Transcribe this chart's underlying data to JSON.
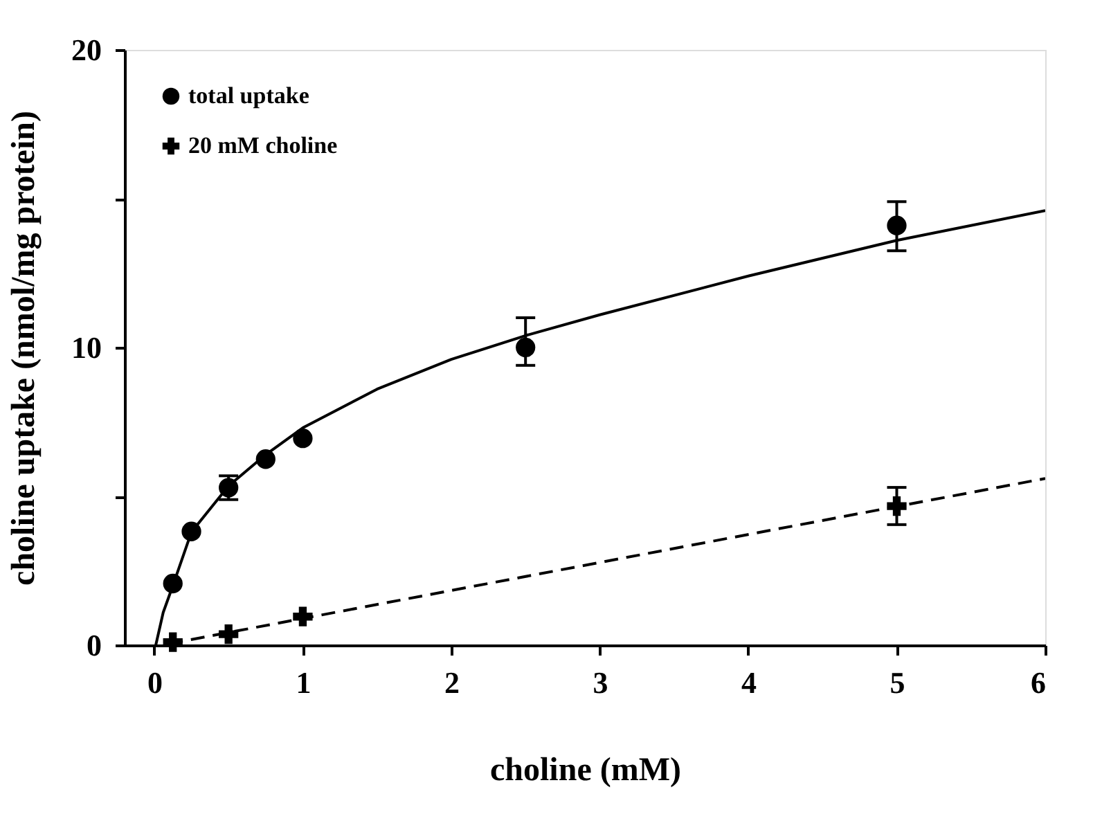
{
  "chart_data": {
    "type": "scatter",
    "xlabel": "choline (mM)",
    "ylabel": "choline uptake (nmol/mg protein)",
    "xlim": [
      -0.2,
      6
    ],
    "ylim": [
      0,
      20
    ],
    "xticks": [
      0,
      1,
      2,
      3,
      4,
      5,
      6
    ],
    "yticks": [
      0,
      {
        "value": 5,
        "label": null
      },
      10,
      {
        "value": 15,
        "label": null
      },
      20
    ],
    "grid": false,
    "legend": "top left",
    "series": [
      {
        "name": "total uptake",
        "marker": "circle",
        "color": "#000000",
        "x": [
          0.125,
          0.25,
          0.5,
          0.75,
          1,
          2.5,
          5
        ],
        "values": [
          2.07,
          3.82,
          5.29,
          6.25,
          6.95,
          10.0,
          14.1
        ],
        "errors": [
          null,
          null,
          0.4,
          null,
          null,
          [
            9.4,
            11.0
          ],
          [
            13.25,
            14.9
          ]
        ]
      },
      {
        "name": "20 mM choline",
        "marker": "cross",
        "color": "#000000",
        "x": [
          0.125,
          0.5,
          1,
          5
        ],
        "values": [
          0.1,
          0.37,
          0.96,
          4.67
        ],
        "errors": [
          null,
          null,
          null,
          [
            4.05,
            5.3
          ]
        ]
      },
      {
        "type": "line",
        "line_style": "solid",
        "color": "#000000",
        "x": [
          0.01,
          0.06,
          0.125,
          0.25,
          0.5,
          0.75,
          1,
          1.5,
          2,
          2.5,
          3,
          4,
          5,
          6
        ],
        "values": [
          0,
          1.1,
          2.0,
          3.8,
          5.35,
          6.4,
          7.3,
          8.6,
          9.6,
          10.4,
          11.1,
          12.4,
          13.6,
          14.6
        ]
      },
      {
        "type": "line",
        "line_style": "dashed",
        "color": "#000000",
        "x": [
          0.1,
          6
        ],
        "values": [
          0.05,
          5.6
        ]
      }
    ]
  }
}
